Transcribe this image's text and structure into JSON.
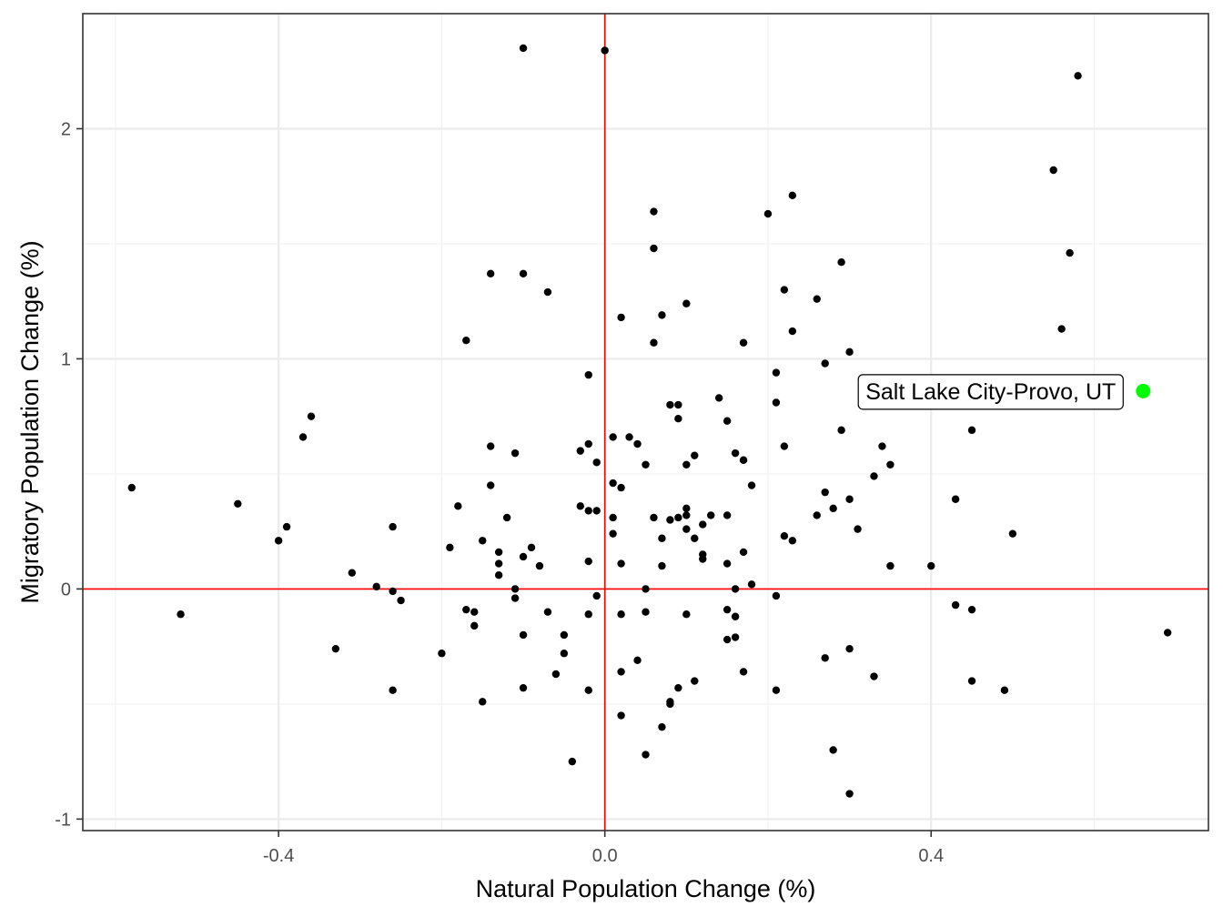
{
  "chart_data": {
    "type": "scatter",
    "title": "",
    "xlabel": "Natural Population Change (%)",
    "ylabel": "Migratory Population Change (%)",
    "xlim": [
      -0.64,
      0.74
    ],
    "ylim": [
      -1.05,
      2.5
    ],
    "x_ticks": [
      -0.4,
      0.0,
      0.4
    ],
    "x_tick_labels": [
      "-0.4",
      "0.0",
      "0.4"
    ],
    "x_minor_ticks": [
      -0.6,
      -0.2,
      0.2,
      0.6
    ],
    "y_ticks": [
      -1,
      0,
      1,
      2
    ],
    "y_tick_labels": [
      "-1",
      "0",
      "1",
      "2"
    ],
    "y_minor_ticks": [
      -0.5,
      0.5,
      1.5
    ],
    "grid": true,
    "reference_lines": {
      "x": 0,
      "y": 0,
      "color": "#ff0000"
    },
    "point_color": "#000000",
    "highlight": {
      "label": "Salt Lake City-Provo, UT",
      "x": 0.66,
      "y": 0.86,
      "color": "#00ff00"
    },
    "points": [
      [
        -0.58,
        0.44
      ],
      [
        -0.52,
        -0.11
      ],
      [
        -0.45,
        0.37
      ],
      [
        -0.4,
        0.21
      ],
      [
        -0.39,
        0.27
      ],
      [
        -0.37,
        0.66
      ],
      [
        -0.36,
        0.75
      ],
      [
        -0.33,
        -0.26
      ],
      [
        -0.31,
        0.07
      ],
      [
        -0.28,
        0.01
      ],
      [
        -0.26,
        -0.01
      ],
      [
        -0.26,
        0.27
      ],
      [
        -0.26,
        -0.44
      ],
      [
        -0.25,
        -0.05
      ],
      [
        -0.2,
        -0.28
      ],
      [
        -0.19,
        0.18
      ],
      [
        -0.18,
        0.36
      ],
      [
        -0.17,
        -0.09
      ],
      [
        -0.17,
        1.08
      ],
      [
        -0.16,
        -0.1
      ],
      [
        -0.16,
        -0.16
      ],
      [
        -0.15,
        0.21
      ],
      [
        -0.15,
        -0.49
      ],
      [
        -0.14,
        0.62
      ],
      [
        -0.14,
        0.45
      ],
      [
        -0.14,
        1.37
      ],
      [
        -0.13,
        0.16
      ],
      [
        -0.13,
        0.11
      ],
      [
        -0.13,
        0.06
      ],
      [
        -0.12,
        0.31
      ],
      [
        -0.11,
        0.0
      ],
      [
        -0.11,
        -0.04
      ],
      [
        -0.11,
        0.59
      ],
      [
        -0.1,
        0.14
      ],
      [
        -0.1,
        -0.2
      ],
      [
        -0.1,
        -0.43
      ],
      [
        -0.1,
        1.37
      ],
      [
        -0.1,
        2.35
      ],
      [
        -0.09,
        0.18
      ],
      [
        -0.08,
        0.1
      ],
      [
        -0.07,
        1.29
      ],
      [
        -0.07,
        -0.1
      ],
      [
        -0.06,
        -0.37
      ],
      [
        -0.05,
        -0.2
      ],
      [
        -0.05,
        -0.28
      ],
      [
        -0.04,
        -0.75
      ],
      [
        -0.03,
        0.36
      ],
      [
        -0.03,
        0.6
      ],
      [
        -0.02,
        0.63
      ],
      [
        -0.02,
        0.34
      ],
      [
        -0.02,
        0.12
      ],
      [
        -0.02,
        -0.11
      ],
      [
        -0.02,
        -0.44
      ],
      [
        -0.02,
        0.93
      ],
      [
        -0.01,
        0.55
      ],
      [
        -0.01,
        0.34
      ],
      [
        -0.01,
        -0.03
      ],
      [
        0.0,
        2.34
      ],
      [
        0.01,
        0.66
      ],
      [
        0.01,
        0.46
      ],
      [
        0.01,
        0.31
      ],
      [
        0.01,
        0.24
      ],
      [
        0.02,
        0.11
      ],
      [
        0.02,
        -0.11
      ],
      [
        0.02,
        -0.36
      ],
      [
        0.02,
        -0.55
      ],
      [
        0.02,
        0.44
      ],
      [
        0.02,
        1.18
      ],
      [
        0.03,
        0.66
      ],
      [
        0.04,
        0.63
      ],
      [
        0.04,
        -0.31
      ],
      [
        0.05,
        0.54
      ],
      [
        0.05,
        0.0
      ],
      [
        0.05,
        -0.1
      ],
      [
        0.05,
        -0.72
      ],
      [
        0.06,
        1.64
      ],
      [
        0.06,
        1.48
      ],
      [
        0.06,
        1.07
      ],
      [
        0.06,
        0.31
      ],
      [
        0.07,
        1.19
      ],
      [
        0.07,
        0.22
      ],
      [
        0.07,
        0.1
      ],
      [
        0.07,
        -0.6
      ],
      [
        0.08,
        0.8
      ],
      [
        0.08,
        0.3
      ],
      [
        0.08,
        -0.49
      ],
      [
        0.08,
        -0.5
      ],
      [
        0.09,
        0.8
      ],
      [
        0.09,
        0.74
      ],
      [
        0.09,
        0.31
      ],
      [
        0.09,
        -0.43
      ],
      [
        0.1,
        0.54
      ],
      [
        0.1,
        0.35
      ],
      [
        0.1,
        0.32
      ],
      [
        0.1,
        0.26
      ],
      [
        0.1,
        -0.11
      ],
      [
        0.1,
        1.24
      ],
      [
        0.11,
        0.58
      ],
      [
        0.11,
        0.22
      ],
      [
        0.11,
        -0.4
      ],
      [
        0.12,
        0.28
      ],
      [
        0.12,
        0.15
      ],
      [
        0.12,
        0.13
      ],
      [
        0.13,
        0.32
      ],
      [
        0.14,
        0.83
      ],
      [
        0.15,
        0.73
      ],
      [
        0.15,
        0.32
      ],
      [
        0.15,
        0.11
      ],
      [
        0.15,
        -0.09
      ],
      [
        0.15,
        -0.22
      ],
      [
        0.16,
        0.59
      ],
      [
        0.16,
        0.0
      ],
      [
        0.16,
        -0.12
      ],
      [
        0.16,
        -0.21
      ],
      [
        0.17,
        0.56
      ],
      [
        0.17,
        0.16
      ],
      [
        0.17,
        -0.36
      ],
      [
        0.17,
        1.07
      ],
      [
        0.18,
        0.45
      ],
      [
        0.18,
        0.02
      ],
      [
        0.2,
        1.63
      ],
      [
        0.21,
        0.94
      ],
      [
        0.21,
        0.81
      ],
      [
        0.21,
        -0.03
      ],
      [
        0.21,
        -0.44
      ],
      [
        0.22,
        1.3
      ],
      [
        0.22,
        0.62
      ],
      [
        0.22,
        0.23
      ],
      [
        0.23,
        1.71
      ],
      [
        0.23,
        1.12
      ],
      [
        0.23,
        0.21
      ],
      [
        0.26,
        1.26
      ],
      [
        0.26,
        0.32
      ],
      [
        0.27,
        0.98
      ],
      [
        0.27,
        0.42
      ],
      [
        0.27,
        -0.3
      ],
      [
        0.28,
        0.35
      ],
      [
        0.28,
        -0.7
      ],
      [
        0.29,
        1.42
      ],
      [
        0.29,
        0.69
      ],
      [
        0.3,
        1.03
      ],
      [
        0.3,
        0.39
      ],
      [
        0.3,
        -0.26
      ],
      [
        0.3,
        -0.89
      ],
      [
        0.31,
        0.26
      ],
      [
        0.33,
        0.49
      ],
      [
        0.33,
        -0.38
      ],
      [
        0.34,
        0.62
      ],
      [
        0.35,
        0.54
      ],
      [
        0.35,
        0.1
      ],
      [
        0.4,
        0.1
      ],
      [
        0.43,
        0.39
      ],
      [
        0.43,
        -0.07
      ],
      [
        0.45,
        0.69
      ],
      [
        0.45,
        -0.09
      ],
      [
        0.45,
        -0.4
      ],
      [
        0.49,
        -0.44
      ],
      [
        0.5,
        0.24
      ],
      [
        0.55,
        1.82
      ],
      [
        0.56,
        1.13
      ],
      [
        0.57,
        1.46
      ],
      [
        0.58,
        2.23
      ],
      [
        0.69,
        -0.19
      ]
    ]
  }
}
